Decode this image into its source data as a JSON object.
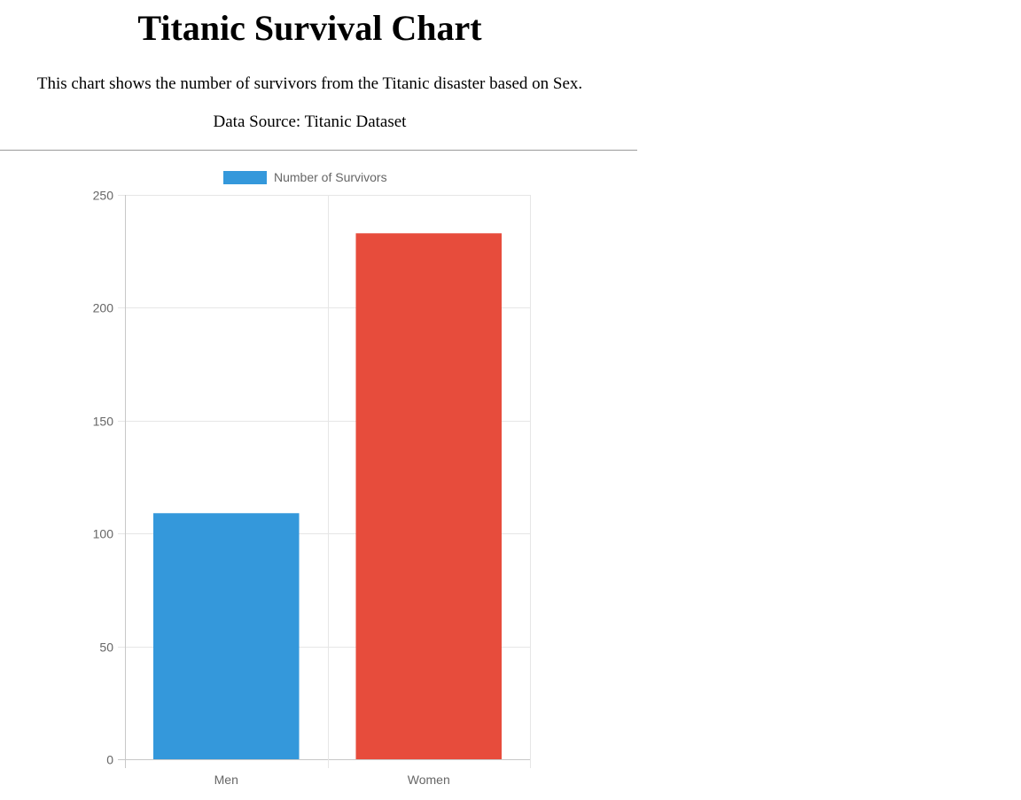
{
  "header": {
    "title": "Titanic Survival Chart",
    "description": "This chart shows the number of survivors from the Titanic disaster based on Sex.",
    "source": "Data Source: Titanic Dataset"
  },
  "chart_data": {
    "type": "bar",
    "categories": [
      "Men",
      "Women"
    ],
    "series": [
      {
        "name": "Number of Survivors",
        "values": [
          109,
          233
        ],
        "colors": [
          "#3498db",
          "#e74c3c"
        ]
      }
    ],
    "legend": {
      "placement": "top",
      "label": "Number of Survivors",
      "swatch_color": "#3498db"
    },
    "ylim": [
      0,
      250
    ],
    "y_ticks": [
      "0",
      "50",
      "100",
      "150",
      "200",
      "250"
    ],
    "grid": true
  }
}
